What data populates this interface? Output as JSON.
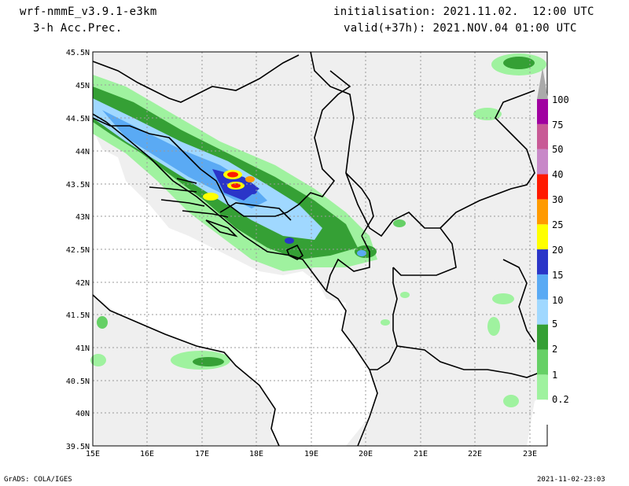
{
  "header": {
    "model": "wrf-nmmE_v3.9.1-e3km",
    "field": "3-h Acc.Prec.",
    "init": "initialisation: 2021.11.02.  12:00 UTC",
    "valid": "valid(+37h): 2021.NOV.04 01:00 UTC"
  },
  "footer": {
    "credit": "GrADS: COLA/IGES",
    "timestamp": "2021-11-02-23:03"
  },
  "map": {
    "lat_labels": [
      "45.5N",
      "45N",
      "44.5N",
      "44N",
      "43.5N",
      "43N",
      "42.5N",
      "42N",
      "41.5N",
      "41N",
      "40.5N",
      "40N",
      "39.5N"
    ],
    "lon_labels": [
      "15E",
      "16E",
      "17E",
      "18E",
      "19E",
      "20E",
      "21E",
      "22E",
      "23E"
    ],
    "lat_range": [
      39.5,
      45.5
    ],
    "lon_range": [
      15,
      23.3
    ],
    "grid": true
  },
  "colorbar": {
    "labels": [
      "0.2",
      "1",
      "2",
      "5",
      "10",
      "15",
      "20",
      "25",
      "30",
      "40",
      "50",
      "75",
      "100"
    ],
    "colors": [
      "#ffffff",
      "#9ff29f",
      "#66d066",
      "#35a035",
      "#a0d8ff",
      "#5aaaf4",
      "#2a35c8",
      "#ffff00",
      "#ff9a00",
      "#ff1a00",
      "#c888c8",
      "#c85a96",
      "#a000a0",
      "#aaaaaa"
    ]
  }
}
